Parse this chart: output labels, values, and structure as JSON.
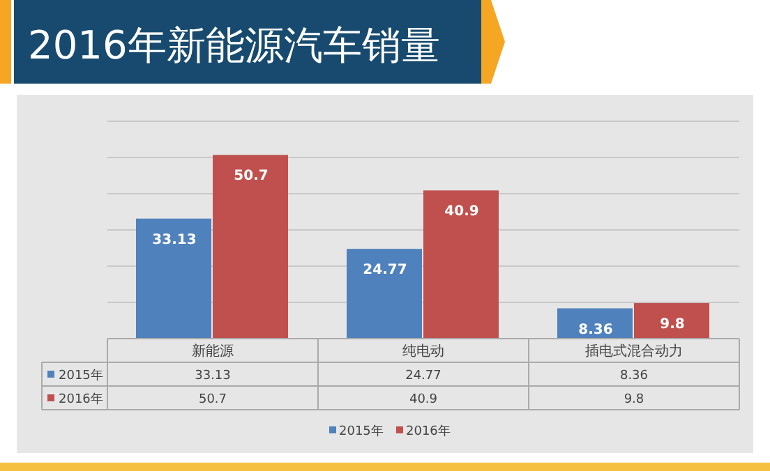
{
  "chart_data": {
    "type": "bar",
    "title": "2016年新能源汽车销量",
    "categories": [
      "新能源",
      "纯电动",
      "插电式混合动力"
    ],
    "series": [
      {
        "name": "2015年",
        "color": "#4f81bd",
        "values": [
          33.13,
          24.77,
          8.36
        ],
        "value_labels": [
          "33.13",
          "24.77",
          "8.36"
        ]
      },
      {
        "name": "2016年",
        "color": "#c0504d",
        "values": [
          50.7,
          40.9,
          9.8
        ],
        "value_labels": [
          "50.7",
          "40.9",
          "9.8"
        ]
      }
    ],
    "ylim": [
      0,
      60
    ],
    "yticks": [
      {
        "value": 0,
        "label": null
      },
      {
        "value": 10,
        "label": null
      },
      {
        "value": 20,
        "label": null
      },
      {
        "value": 30,
        "label": null
      },
      {
        "value": 40,
        "label": null
      },
      {
        "value": 50,
        "label": null
      },
      {
        "value": 60,
        "label": null
      }
    ],
    "annotations": [
      "33.13",
      "24.77",
      "8.36",
      "50.7",
      "40.9",
      "9.8"
    ],
    "grid": "y",
    "tick_labels": "x",
    "legend": "bottom"
  }
}
